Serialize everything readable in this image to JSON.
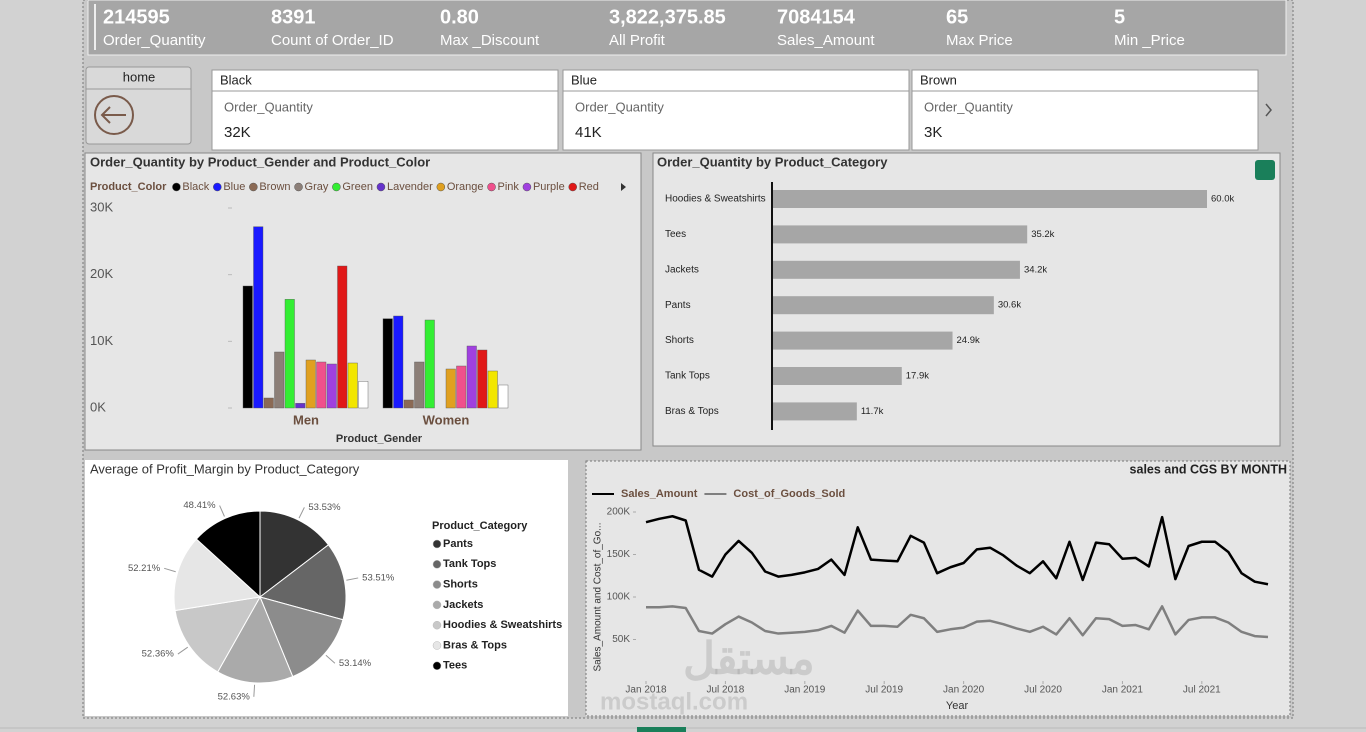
{
  "kpis": [
    {
      "value": "214595",
      "label": "Order_Quantity"
    },
    {
      "value": "8391",
      "label": "Count of Order_ID"
    },
    {
      "value": "0.80",
      "label": "Max _Discount"
    },
    {
      "value": "3,822,375.85",
      "label": "All Profit"
    },
    {
      "value": "7084154",
      "label": "Sales_Amount"
    },
    {
      "value": "65",
      "label": "Max Price"
    },
    {
      "value": "5",
      "label": "Min _Price"
    }
  ],
  "home": {
    "label": "home"
  },
  "color_cards": [
    {
      "title": "Black",
      "measure": "Order_Quantity",
      "value": "32K"
    },
    {
      "title": "Blue",
      "measure": "Order_Quantity",
      "value": "41K"
    },
    {
      "title": "Brown",
      "measure": "Order_Quantity",
      "value": "3K"
    }
  ],
  "watermark": [
    "مستقل",
    "mostaql.com"
  ],
  "chart_data": [
    {
      "type": "bar",
      "title": "Order_Quantity by Product_Gender and Product_Color",
      "legend_title": "Product_Color",
      "categories": [
        "Men",
        "Women"
      ],
      "xlabel": "Product_Gender",
      "series": [
        {
          "name": "Black",
          "color": "#000000",
          "values": [
            18300,
            13400
          ]
        },
        {
          "name": "Blue",
          "color": "#1a1aff",
          "values": [
            27200,
            13800
          ]
        },
        {
          "name": "Brown",
          "color": "#8b6a55",
          "values": [
            1500,
            1200
          ]
        },
        {
          "name": "Gray",
          "color": "#8c7f78",
          "values": [
            8400,
            6900
          ]
        },
        {
          "name": "Green",
          "color": "#33ee33",
          "values": [
            16300,
            13200
          ]
        },
        {
          "name": "Lavender",
          "color": "#6633cc",
          "values": [
            700,
            null
          ]
        },
        {
          "name": "Orange",
          "color": "#e0a020",
          "values": [
            7200,
            5850
          ]
        },
        {
          "name": "Pink",
          "color": "#f0508c",
          "values": [
            6900,
            6300
          ]
        },
        {
          "name": "Purple",
          "color": "#a040e0",
          "values": [
            6600,
            9300
          ]
        },
        {
          "name": "Red",
          "color": "#e01818",
          "values": [
            21300,
            8700
          ]
        },
        {
          "color": "#f2e600",
          "values": [
            6750,
            5550
          ]
        },
        {
          "color": "#ffffff",
          "values": [
            4000,
            3450
          ]
        }
      ],
      "ylim": [
        0,
        30000
      ],
      "yticks": [
        {
          "value": 0,
          "label": "0K"
        },
        {
          "value": 10000,
          "label": "10K"
        },
        {
          "value": 20000,
          "label": "20K"
        },
        {
          "value": 30000,
          "label": "30K"
        }
      ]
    },
    {
      "type": "hbar",
      "title": "Order_Quantity by Product_Category",
      "categories": [
        "Hoodies & Sweatshirts",
        "Tees",
        "Jackets",
        "Pants",
        "Shorts",
        "Tank Tops",
        "Bras & Tops"
      ],
      "values": [
        60000,
        35200,
        34200,
        30600,
        24900,
        17900,
        11700
      ],
      "value_labels": [
        "60.0k",
        "35.2k",
        "34.2k",
        "30.6k",
        "24.9k",
        "17.9k",
        "11.7k"
      ],
      "color": "#a6a6a6",
      "xlim": [
        0,
        60000
      ]
    },
    {
      "type": "pie",
      "title": "Average of Profit_Margin by Product_Category",
      "legend_title": "Product_Category",
      "categories": [
        "Pants",
        "Tank Tops",
        "Shorts",
        "Jackets",
        "Hoodies & Sweatshirts",
        "Bras & Tops",
        "Tees"
      ],
      "values": [
        53.53,
        53.51,
        53.14,
        52.63,
        52.36,
        52.21,
        48.41
      ],
      "value_labels": [
        "53.53%",
        "53.51%",
        "53.14%",
        "52.63%",
        "52.36%",
        "52.21%",
        "48.41%"
      ],
      "colors": [
        "#333333",
        "#666666",
        "#8c8c8c",
        "#aaaaaa",
        "#c8c8c8",
        "#e6e6e6",
        "#000000"
      ]
    },
    {
      "type": "line",
      "title": "sales and CGS BY MONTH",
      "xlabel": "Year",
      "ylabel": "Sales_Amount and Cost_of_Go...",
      "x": [
        "2018-01",
        "2018-02",
        "2018-03",
        "2018-04",
        "2018-05",
        "2018-06",
        "2018-07",
        "2018-08",
        "2018-09",
        "2018-10",
        "2018-11",
        "2018-12",
        "2019-01",
        "2019-02",
        "2019-03",
        "2019-04",
        "2019-05",
        "2019-06",
        "2019-07",
        "2019-08",
        "2019-09",
        "2019-10",
        "2019-11",
        "2019-12",
        "2020-01",
        "2020-02",
        "2020-03",
        "2020-04",
        "2020-05",
        "2020-06",
        "2020-07",
        "2020-08",
        "2020-09",
        "2020-10",
        "2020-11",
        "2020-12",
        "2021-01",
        "2021-02",
        "2021-03",
        "2021-04",
        "2021-05",
        "2021-06",
        "2021-07",
        "2021-08",
        "2021-09",
        "2021-10",
        "2021-11",
        "2021-12"
      ],
      "series": [
        {
          "name": "Sales_Amount",
          "color": "#000000",
          "values": [
            188000,
            192000,
            195000,
            190000,
            132000,
            124000,
            150000,
            166000,
            152000,
            130000,
            124000,
            126000,
            129000,
            133000,
            144000,
            126000,
            182000,
            144000,
            143000,
            142000,
            172000,
            164000,
            128000,
            135000,
            140000,
            156000,
            158000,
            149000,
            137000,
            128000,
            142000,
            122000,
            165000,
            120000,
            164000,
            162000,
            145000,
            146000,
            136000,
            194000,
            121000,
            160000,
            165000,
            165000,
            153000,
            128000,
            118000,
            115000
          ]
        },
        {
          "name": "Cost_of_Goods_Sold",
          "color": "#7f7f7f",
          "values": [
            88000,
            88000,
            89000,
            87000,
            60000,
            57000,
            68000,
            77000,
            70000,
            60000,
            57000,
            58000,
            59000,
            61000,
            66000,
            58000,
            84000,
            66000,
            66000,
            65000,
            79000,
            75000,
            59000,
            62000,
            64000,
            71000,
            72000,
            68000,
            63000,
            59000,
            65000,
            56000,
            75000,
            55000,
            75000,
            74000,
            66000,
            67000,
            62000,
            89000,
            56000,
            73000,
            76000,
            76000,
            70000,
            59000,
            54000,
            53000
          ]
        }
      ],
      "xlim": [
        "2018-01",
        "2021-12"
      ],
      "xticks": [
        {
          "value": "2018-01",
          "label": "Jan 2018"
        },
        {
          "value": "2018-07",
          "label": "Jul 2018"
        },
        {
          "value": "2019-01",
          "label": "Jan 2019"
        },
        {
          "value": "2019-07",
          "label": "Jul 2019"
        },
        {
          "value": "2020-01",
          "label": "Jan 2020"
        },
        {
          "value": "2020-07",
          "label": "Jul 2020"
        },
        {
          "value": "2021-01",
          "label": "Jan 2021"
        },
        {
          "value": "2021-07",
          "label": "Jul 2021"
        }
      ],
      "ylim": [
        0,
        200000
      ],
      "yticks": [
        {
          "value": 50000,
          "label": "50K"
        },
        {
          "value": 100000,
          "label": "100K"
        },
        {
          "value": 150000,
          "label": "150K"
        },
        {
          "value": 200000,
          "label": "200K"
        }
      ]
    }
  ]
}
